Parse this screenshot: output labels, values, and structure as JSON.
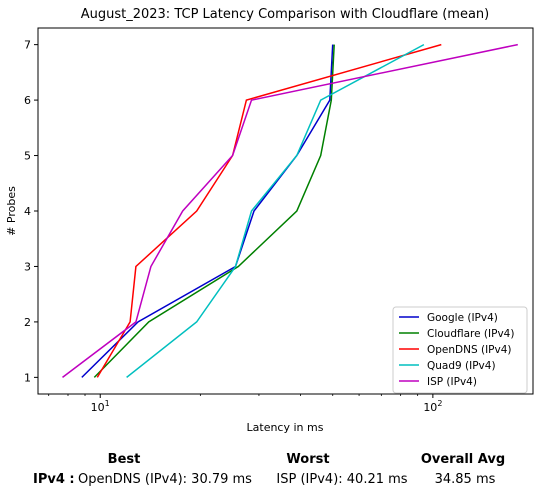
{
  "chart_data": {
    "type": "line",
    "title": "August_2023: TCP Latency Comparison with Cloudflare (mean)",
    "xlabel": "Latency in ms",
    "ylabel": "# Probes",
    "xscale": "log",
    "xlim": [
      6.5,
      200
    ],
    "ylim": [
      0.7,
      7.3
    ],
    "xticks": [
      {
        "value": 10,
        "label": "10^1"
      },
      {
        "value": 100,
        "label": "10^2"
      }
    ],
    "yticks": [
      1,
      2,
      3,
      4,
      5,
      6,
      7
    ],
    "grid": false,
    "legend_position": "lower-right",
    "series": [
      {
        "name": "Google (IPv4)",
        "color": "#0000cc",
        "x": [
          8.8,
          13.0,
          25.5,
          29.0,
          39.0,
          49.0,
          50.0
        ],
        "y": [
          1,
          2,
          3,
          4,
          5,
          6,
          7
        ]
      },
      {
        "name": "Cloudflare (IPv4)",
        "color": "#008000",
        "x": [
          9.6,
          14.0,
          26.0,
          39.0,
          46.0,
          49.5,
          50.5
        ],
        "y": [
          1,
          2,
          3,
          4,
          5,
          6,
          7
        ]
      },
      {
        "name": "OpenDNS (IPv4)",
        "color": "#ff0000",
        "x": [
          9.8,
          12.3,
          12.8,
          19.5,
          25.0,
          27.5,
          106.0
        ],
        "y": [
          1,
          2,
          3,
          4,
          5,
          6,
          7
        ]
      },
      {
        "name": "Quad9 (IPv4)",
        "color": "#00bfbf",
        "x": [
          12.0,
          19.5,
          25.5,
          28.5,
          39.0,
          46.0,
          94.0
        ],
        "y": [
          1,
          2,
          3,
          4,
          5,
          6,
          7
        ]
      },
      {
        "name": "ISP (IPv4)",
        "color": "#bf00bf",
        "x": [
          7.7,
          12.8,
          14.2,
          17.7,
          25.0,
          28.5,
          180.0
        ],
        "y": [
          1,
          2,
          3,
          4,
          5,
          6,
          7
        ]
      }
    ]
  },
  "summary": {
    "headers": {
      "best": "Best",
      "worst": "Worst",
      "overall": "Overall Avg"
    },
    "row_label": "IPv4 :",
    "best": "OpenDNS (IPv4): 30.79 ms",
    "worst": "ISP (IPv4): 40.21 ms",
    "overall": "34.85 ms"
  }
}
